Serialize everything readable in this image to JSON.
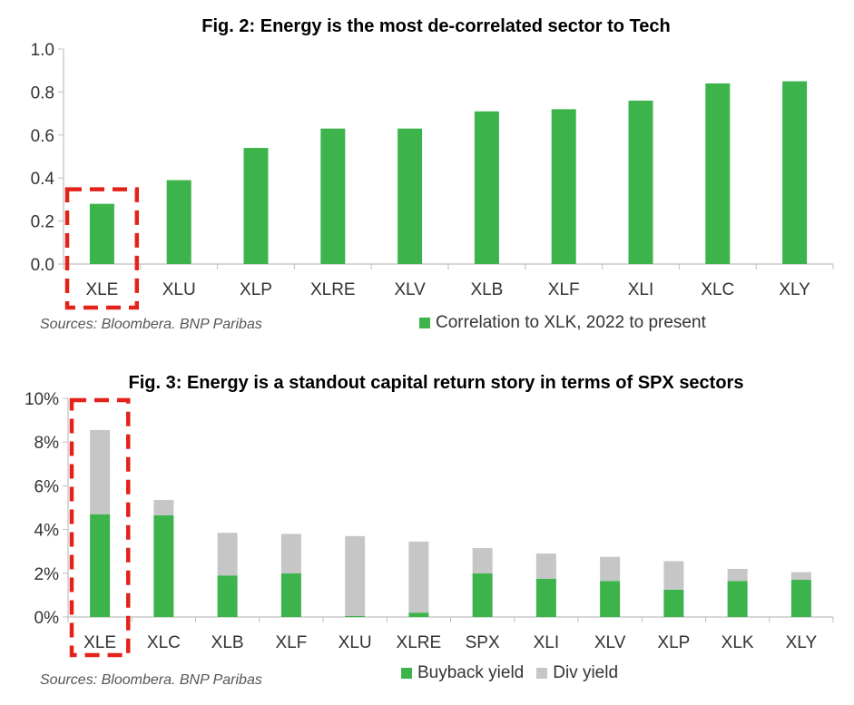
{
  "colors": {
    "green": "#3cb44b",
    "grey": "#c6c6c6",
    "axis": "#bfbfbf",
    "highlight": "#e32219"
  },
  "chart_data": [
    {
      "type": "bar",
      "title": "Fig. 2: Energy is the most de-correlated sector to Tech",
      "source": "Sources: Bloombera. BNP Paribas",
      "categories": [
        "XLE",
        "XLU",
        "XLP",
        "XLRE",
        "XLV",
        "XLB",
        "XLF",
        "XLI",
        "XLC",
        "XLY"
      ],
      "series": [
        {
          "name": "Correlation to XLK, 2022 to present",
          "values": [
            0.28,
            0.39,
            0.54,
            0.63,
            0.63,
            0.71,
            0.72,
            0.76,
            0.84,
            0.85
          ]
        }
      ],
      "ylim": [
        0,
        1.0
      ],
      "yticks": [
        "0.0",
        "0.2",
        "0.4",
        "0.6",
        "0.8",
        "1.0"
      ],
      "highlight": "XLE",
      "grid": false,
      "legend": "bottom-right"
    },
    {
      "type": "bar",
      "stacked": true,
      "title": "Fig. 3: Energy is a standout capital return story in terms of SPX sectors",
      "source": "Sources: Bloombera. BNP Paribas",
      "categories": [
        "XLE",
        "XLC",
        "XLB",
        "XLF",
        "XLU",
        "XLRE",
        "SPX",
        "XLI",
        "XLV",
        "XLP",
        "XLK",
        "XLY"
      ],
      "series": [
        {
          "name": "Buyback yield",
          "values": [
            4.7,
            4.65,
            1.9,
            2.0,
            0.05,
            0.2,
            2.0,
            1.75,
            1.65,
            1.25,
            1.65,
            1.7
          ]
        },
        {
          "name": "Div yield",
          "values": [
            3.85,
            0.7,
            1.95,
            1.8,
            3.65,
            3.25,
            1.15,
            1.15,
            1.1,
            1.3,
            0.55,
            0.35
          ]
        }
      ],
      "ylim": [
        0,
        10
      ],
      "yticks": [
        "0%",
        "2%",
        "4%",
        "6%",
        "8%",
        "10%"
      ],
      "highlight": "XLE",
      "grid": false,
      "legend": "bottom-right"
    }
  ]
}
